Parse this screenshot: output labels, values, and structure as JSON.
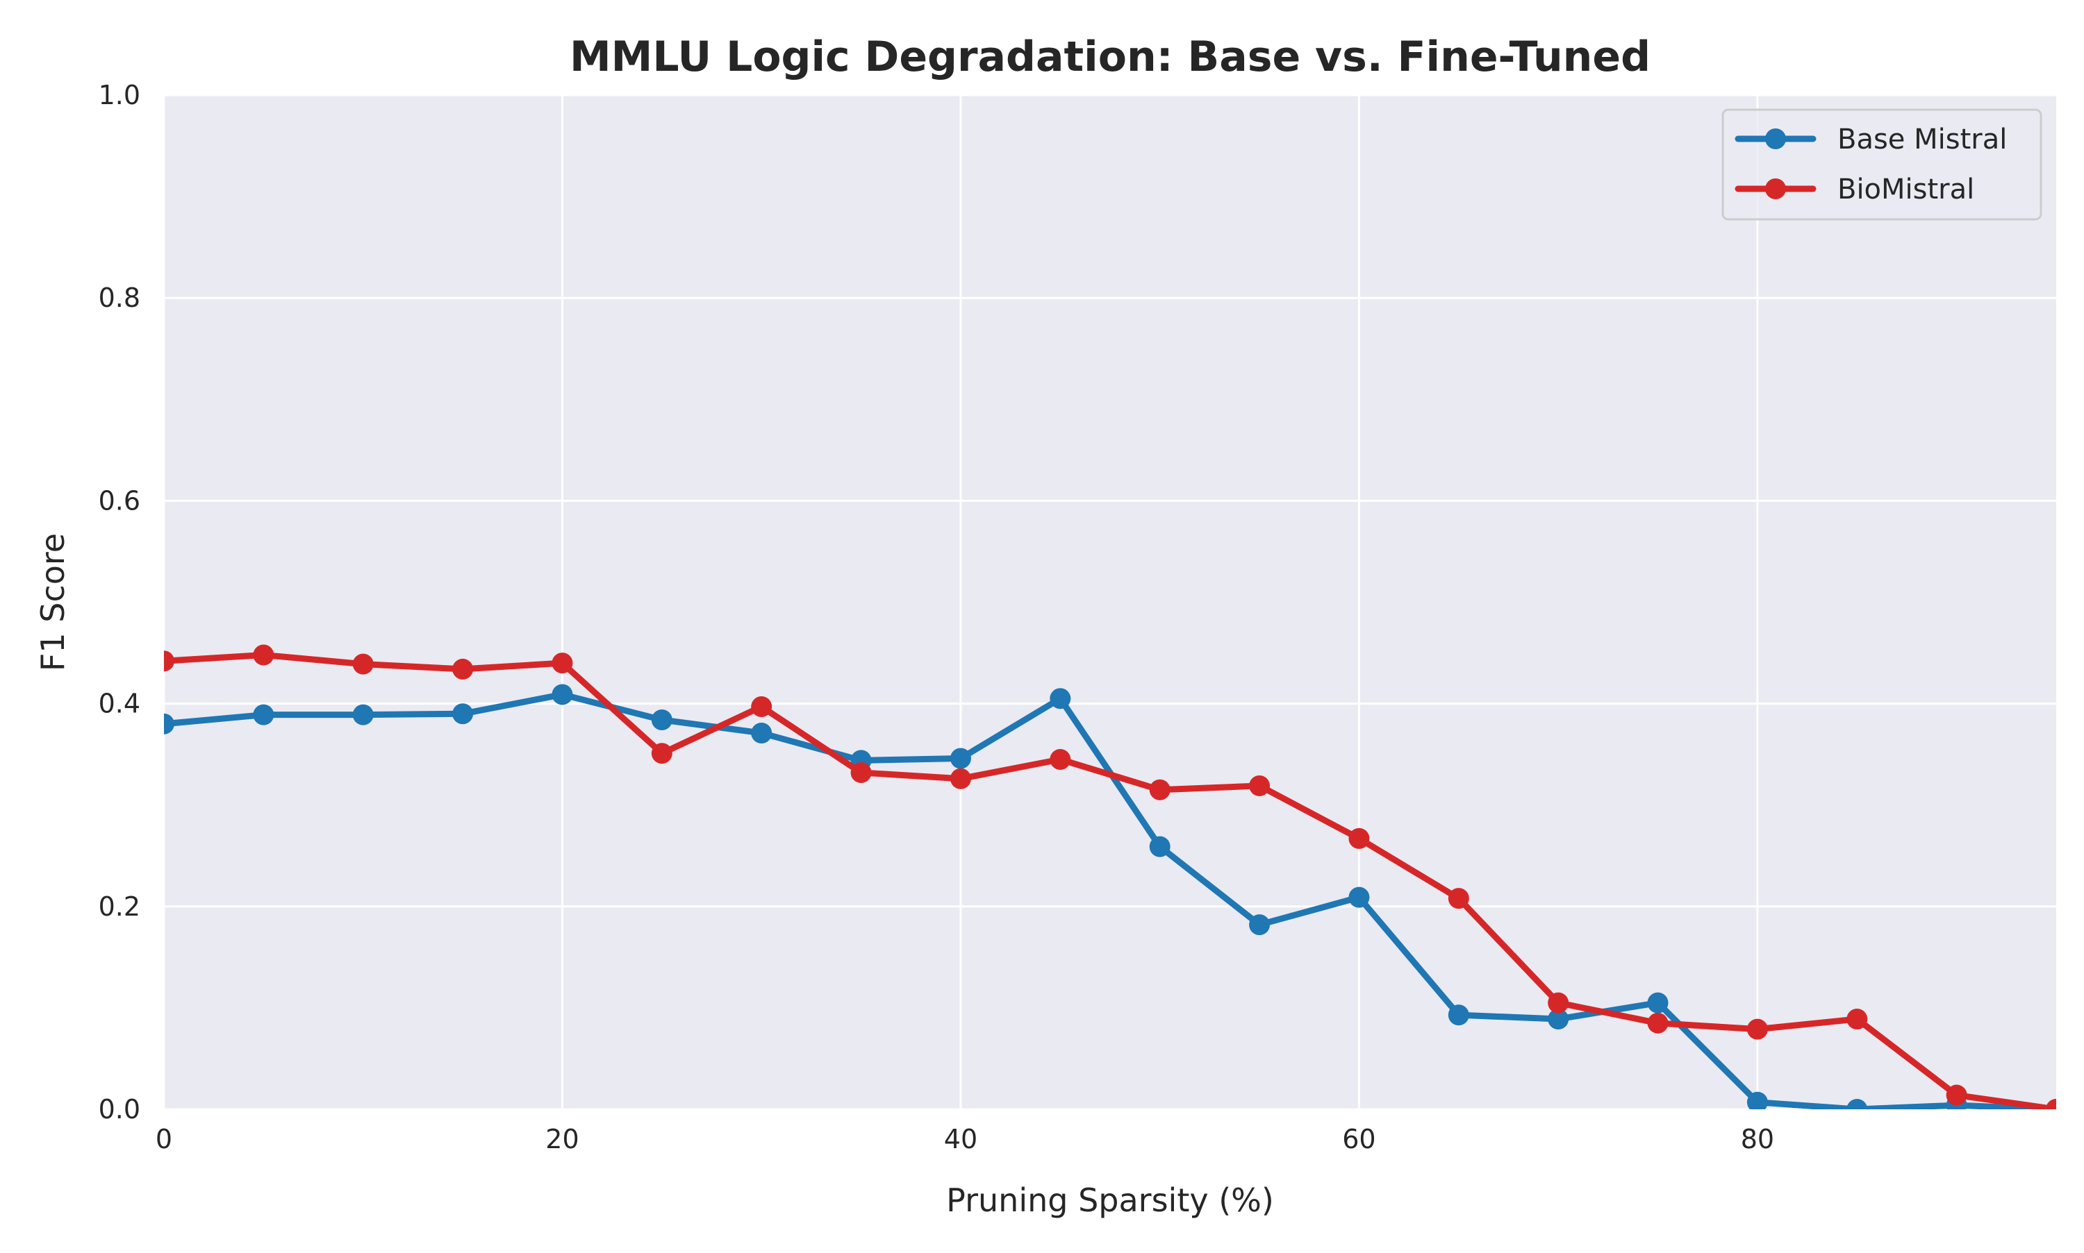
{
  "chart_data": {
    "type": "line",
    "title": "MMLU Logic Degradation: Base vs. Fine-Tuned",
    "xlabel": "Pruning Sparsity (%)",
    "ylabel": "F1 Score",
    "xlim": [
      0,
      95
    ],
    "ylim": [
      0,
      1.0
    ],
    "xticks": [
      0,
      20,
      40,
      60,
      80
    ],
    "yticks": [
      0.0,
      0.2,
      0.4,
      0.6,
      0.8,
      1.0
    ],
    "xtick_labels": [
      "0",
      "20",
      "40",
      "60",
      "80"
    ],
    "ytick_labels": [
      "0.0",
      "0.2",
      "0.4",
      "0.6",
      "0.8",
      "1.0"
    ],
    "grid": true,
    "background": "#eaeaf2",
    "legend_position": "top-right",
    "x": [
      0,
      5,
      10,
      15,
      20,
      25,
      30,
      35,
      40,
      45,
      50,
      55,
      60,
      65,
      70,
      75,
      80,
      85,
      90,
      95
    ],
    "series": [
      {
        "name": "Base Mistral",
        "color": "#1f77b4",
        "values": [
          0.38,
          0.389,
          0.389,
          0.39,
          0.409,
          0.384,
          0.371,
          0.344,
          0.346,
          0.405,
          0.259,
          0.182,
          0.209,
          0.093,
          0.089,
          0.105,
          0.007,
          0.0,
          0.004,
          0.0
        ]
      },
      {
        "name": "BioMistral",
        "color": "#d62728",
        "values": [
          0.442,
          0.448,
          0.439,
          0.434,
          0.44,
          0.351,
          0.397,
          0.332,
          0.326,
          0.345,
          0.315,
          0.319,
          0.267,
          0.208,
          0.105,
          0.085,
          0.079,
          0.089,
          0.014,
          0.0
        ]
      }
    ]
  }
}
